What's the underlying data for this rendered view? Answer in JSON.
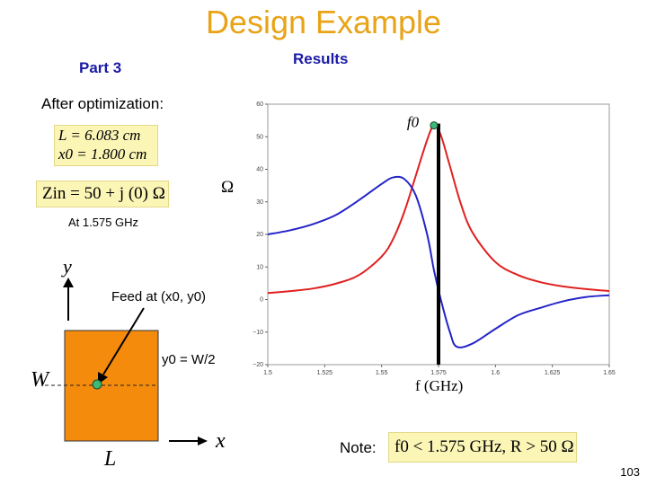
{
  "slide": {
    "title": "Design Example",
    "part": "Part 3",
    "results": "Results",
    "after": "After optimization:",
    "param_L": "L = 6.083 cm",
    "param_x0": "x0 = 1.800 cm",
    "zin": "Zin = 50 + j (0) Ω",
    "at_freq": "At 1.575 GHz",
    "diagram_y": "y",
    "feed": "Feed at (x0, y0)",
    "y0_eq": "y0 = W/2",
    "diagram_W": "W",
    "diagram_L": "L",
    "diagram_x": "x",
    "omega": "Ω",
    "note_label": "Note:",
    "note_text": "f0 < 1.575 GHz,  R > 50 Ω",
    "page_number": "103"
  },
  "colors": {
    "title": "#e8a317",
    "heading": "#1a1aa6",
    "patch_fill": "#f58b0c",
    "feed_point": "#3cb878",
    "resistance_series": "#e02020",
    "reactance_series": "#2424c8",
    "highlight_box": "#fbf5b6"
  },
  "chart_data": {
    "type": "line",
    "title": "",
    "xlabel": "f (GHz)",
    "ylabel": "Ω",
    "xlim": [
      1.5,
      1.65
    ],
    "ylim": [
      -20,
      60
    ],
    "xticks": [
      "1.5",
      "1.525",
      "1.55",
      "1.575",
      "1.6",
      "1.625",
      "1.65"
    ],
    "yticks": [
      "-20",
      "-10",
      "0",
      "10",
      "20",
      "30",
      "40",
      "50",
      "60"
    ],
    "grid": false,
    "marker": {
      "label": "f0",
      "x": 1.573,
      "y": 53.5
    },
    "vline_x": 1.575,
    "series": [
      {
        "color": "#e02020",
        "x": [
          1.5,
          1.51,
          1.52,
          1.53,
          1.54,
          1.55,
          1.555,
          1.56,
          1.565,
          1.57,
          1.573,
          1.576,
          1.58,
          1.585,
          1.59,
          1.6,
          1.61,
          1.62,
          1.63,
          1.64,
          1.65
        ],
        "y": [
          2.0,
          2.6,
          3.4,
          4.9,
          7.5,
          13.2,
          18.5,
          27.0,
          38.0,
          49.0,
          53.5,
          50.5,
          41.0,
          29.0,
          20.5,
          11.5,
          7.5,
          5.3,
          4.0,
          3.2,
          2.6
        ]
      },
      {
        "color": "#2424c8",
        "x": [
          1.5,
          1.51,
          1.52,
          1.53,
          1.54,
          1.55,
          1.555,
          1.56,
          1.565,
          1.57,
          1.573,
          1.576,
          1.58,
          1.583,
          1.59,
          1.6,
          1.61,
          1.62,
          1.63,
          1.64,
          1.65
        ],
        "y": [
          20.0,
          21.3,
          23.2,
          26.0,
          30.5,
          35.5,
          37.5,
          37.0,
          32.0,
          20.0,
          9.0,
          0.0,
          -10.0,
          -14.5,
          -13.5,
          -9.0,
          -4.8,
          -2.5,
          -0.5,
          0.8,
          1.3
        ]
      }
    ]
  }
}
